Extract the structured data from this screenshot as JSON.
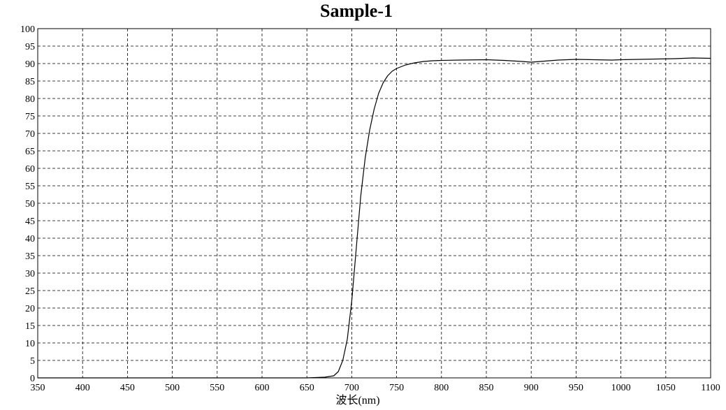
{
  "chart_data": {
    "type": "line",
    "title": "Sample-1",
    "xlabel": "波长(nm)",
    "ylabel": "",
    "xlim": [
      350,
      1100
    ],
    "ylim": [
      0,
      100
    ],
    "x_ticks": [
      "350",
      "400",
      "450",
      "500",
      "550",
      "600",
      "650",
      "700",
      "750",
      "800",
      "850",
      "900",
      "950",
      "1000",
      "1050",
      "1100"
    ],
    "y_ticks": [
      "0",
      "5",
      "10",
      "15",
      "20",
      "25",
      "30",
      "35",
      "40",
      "45",
      "50",
      "55",
      "60",
      "65",
      "70",
      "75",
      "80",
      "85",
      "90",
      "95",
      "100"
    ],
    "grid": true,
    "grid_style": "dashed",
    "line_color": "#000000",
    "series": [
      {
        "x": [
          350,
          400,
          450,
          500,
          550,
          600,
          650,
          670,
          680,
          685,
          690,
          695,
          700,
          705,
          710,
          715,
          720,
          725,
          730,
          735,
          740,
          745,
          750,
          760,
          770,
          780,
          790,
          800,
          820,
          850,
          870,
          890,
          900,
          910,
          930,
          950,
          970,
          990,
          1000,
          1020,
          1040,
          1060,
          1080,
          1100
        ],
        "y": [
          0,
          0,
          0,
          0,
          0,
          0,
          0,
          0.2,
          0.6,
          1.8,
          5,
          11,
          22,
          37,
          52,
          63,
          71,
          77,
          81.5,
          84.5,
          86.5,
          87.8,
          88.6,
          89.6,
          90.2,
          90.6,
          90.8,
          90.9,
          91,
          91.1,
          90.9,
          90.6,
          90.4,
          90.6,
          91,
          91.2,
          91.1,
          91,
          91.1,
          91.2,
          91.3,
          91.4,
          91.6,
          91.5
        ]
      }
    ]
  }
}
